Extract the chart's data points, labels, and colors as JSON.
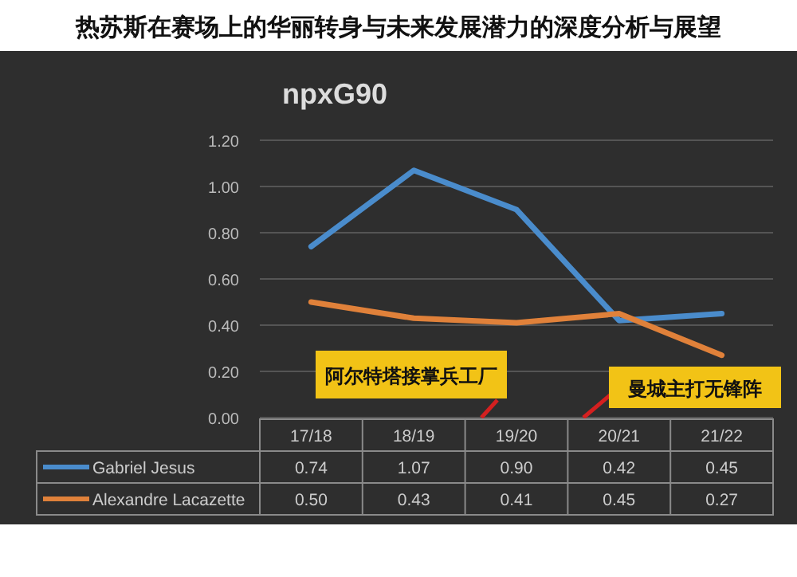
{
  "chart_data": {
    "type": "line",
    "title": "npxG90",
    "subtitle": "热苏斯在赛场上的华丽转身与未来发展潜力的深度分析与展望",
    "categories": [
      "17/18",
      "18/19",
      "19/20",
      "20/21",
      "21/22"
    ],
    "series": [
      {
        "name": "Gabriel Jesus",
        "color": "#4a8ccc",
        "values": [
          0.74,
          1.07,
          0.9,
          0.42,
          0.45
        ],
        "value_labels": [
          "0.74",
          "1.07",
          "0.90",
          "0.42",
          "0.45"
        ]
      },
      {
        "name": "Alexandre Lacazette",
        "color": "#e0813a",
        "values": [
          0.5,
          0.43,
          0.41,
          0.45,
          0.27
        ],
        "value_labels": [
          "0.50",
          "0.43",
          "0.41",
          "0.45",
          "0.27"
        ]
      }
    ],
    "ylim": [
      0,
      1.2
    ],
    "yticks": [
      {
        "value": 0,
        "label": "0.00"
      },
      {
        "value": 0.2,
        "label": "0.20"
      },
      {
        "value": 0.4,
        "label": "0.40"
      },
      {
        "value": 0.6,
        "label": "0.60"
      },
      {
        "value": 0.8,
        "label": "0.80"
      },
      {
        "value": 1.0,
        "label": "1.00"
      },
      {
        "value": 1.2,
        "label": "1.20"
      }
    ],
    "grid": "y",
    "legend": "bottom",
    "annotations": [
      "阿尔特塔接掌兵工厂",
      "曼城主打无锋阵"
    ]
  }
}
